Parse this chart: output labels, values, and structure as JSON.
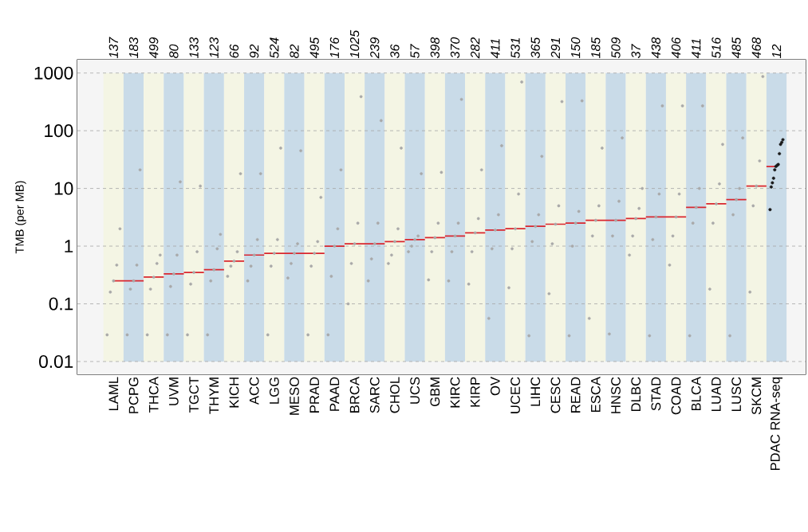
{
  "chart_data": {
    "type": "scatter",
    "ylabel": "TMB (per MB)",
    "categories": [
      "LAML",
      "PCPG",
      "THCA",
      "UVM",
      "TGCT",
      "THYM",
      "KICH",
      "ACC",
      "LGG",
      "MESO",
      "PRAD",
      "PAAD",
      "BRCA",
      "SARC",
      "CHOL",
      "UCS",
      "GBM",
      "KIRC",
      "KIRP",
      "OV",
      "UCEC",
      "LIHC",
      "CESC",
      "READ",
      "ESCA",
      "HNSC",
      "DLBC",
      "STAD",
      "COAD",
      "BLCA",
      "LUAD",
      "LUSC",
      "SKCM",
      "PDAC RNA-seq"
    ],
    "log": "y",
    "ylim": [
      0.006,
      1700
    ],
    "yticks": [
      0.01,
      0.1,
      1,
      10,
      100,
      1000
    ],
    "grid": "y",
    "series": [
      {
        "marker": "circle",
        "color": "#a9a9a9",
        "x": [
          "LAML",
          "LAML",
          "LAML",
          "LAML",
          "LAML",
          "PCPG",
          "PCPG",
          "PCPG",
          "PCPG",
          "PCPG",
          "THCA",
          "THCA",
          "THCA",
          "THCA",
          "THCA",
          "UVM",
          "UVM",
          "UVM",
          "UVM",
          "UVM",
          "TGCT",
          "TGCT",
          "TGCT",
          "TGCT",
          "TGCT",
          "THYM",
          "THYM",
          "THYM",
          "THYM",
          "THYM",
          "KICH",
          "KICH",
          "KICH",
          "KICH",
          "KICH",
          "ACC",
          "ACC",
          "ACC",
          "ACC",
          "ACC",
          "LGG",
          "LGG",
          "LGG",
          "LGG",
          "LGG",
          "MESO",
          "MESO",
          "MESO",
          "MESO",
          "MESO",
          "PRAD",
          "PRAD",
          "PRAD",
          "PRAD",
          "PRAD",
          "PAAD",
          "PAAD",
          "PAAD",
          "PAAD",
          "PAAD",
          "BRCA",
          "BRCA",
          "BRCA",
          "BRCA",
          "BRCA",
          "SARC",
          "SARC",
          "SARC",
          "SARC",
          "SARC",
          "CHOL",
          "CHOL",
          "CHOL",
          "CHOL",
          "CHOL",
          "UCS",
          "UCS",
          "UCS",
          "UCS",
          "UCS",
          "GBM",
          "GBM",
          "GBM",
          "GBM",
          "GBM",
          "KIRC",
          "KIRC",
          "KIRC",
          "KIRC",
          "KIRC",
          "KIRP",
          "KIRP",
          "KIRP",
          "KIRP",
          "KIRP",
          "OV",
          "OV",
          "OV",
          "OV",
          "OV",
          "UCEC",
          "UCEC",
          "UCEC",
          "UCEC",
          "UCEC",
          "LIHC",
          "LIHC",
          "LIHC",
          "LIHC",
          "LIHC",
          "CESC",
          "CESC",
          "CESC",
          "CESC",
          "CESC",
          "READ",
          "READ",
          "READ",
          "READ",
          "READ",
          "ESCA",
          "ESCA",
          "ESCA",
          "ESCA",
          "ESCA",
          "HNSC",
          "HNSC",
          "HNSC",
          "HNSC",
          "HNSC",
          "DLBC",
          "DLBC",
          "DLBC",
          "DLBC",
          "DLBC",
          "STAD",
          "STAD",
          "STAD",
          "STAD",
          "STAD",
          "COAD",
          "COAD",
          "COAD",
          "COAD",
          "COAD",
          "BLCA",
          "BLCA",
          "BLCA",
          "BLCA",
          "BLCA",
          "LUAD",
          "LUAD",
          "LUAD",
          "LUAD",
          "LUAD",
          "LUSC",
          "LUSC",
          "LUSC",
          "LUSC",
          "LUSC",
          "SKCM",
          "SKCM",
          "SKCM",
          "SKCM",
          "SKCM"
        ],
        "values": [
          0.029,
          0.16,
          0.25,
          0.47,
          2,
          0.029,
          0.18,
          0.25,
          0.47,
          21,
          0.029,
          0.18,
          0.29,
          0.5,
          0.7,
          0.029,
          0.2,
          0.33,
          0.7,
          13,
          0.029,
          0.22,
          0.35,
          0.8,
          11,
          0.029,
          0.25,
          0.39,
          0.9,
          1.6,
          0.3,
          0.45,
          0.55,
          0.8,
          18,
          0.25,
          0.45,
          0.7,
          1.3,
          18,
          0.029,
          0.45,
          0.75,
          1.3,
          50,
          0.28,
          0.5,
          0.75,
          1.1,
          45,
          0.029,
          0.45,
          0.75,
          1.2,
          7,
          0.029,
          0.3,
          1,
          2,
          21,
          0.1,
          0.5,
          1.1,
          2.5,
          390,
          0.25,
          0.6,
          1.1,
          2.5,
          150,
          0.5,
          0.7,
          1.2,
          2,
          50,
          0.8,
          1,
          1.3,
          1.5,
          18,
          0.26,
          0.8,
          1.4,
          2.5,
          19,
          0.25,
          0.8,
          1.5,
          2.5,
          350,
          0.22,
          0.8,
          1.7,
          3,
          21,
          0.056,
          0.9,
          1.9,
          3.5,
          55,
          0.19,
          0.9,
          2,
          8,
          700,
          0.028,
          1.2,
          2.2,
          3.5,
          36,
          0.15,
          1.1,
          2.4,
          5,
          320,
          0.028,
          1,
          2.5,
          4,
          330,
          0.056,
          1.5,
          2.8,
          5,
          50,
          0.03,
          1.5,
          2.8,
          6,
          75,
          0.7,
          1.5,
          3,
          4.5,
          10,
          0.028,
          1.3,
          3.2,
          8,
          270,
          0.47,
          1.5,
          3.2,
          8,
          270,
          0.028,
          2.5,
          4.7,
          10,
          270,
          0.18,
          2.5,
          5.4,
          12,
          58,
          0.028,
          3.5,
          6.4,
          10,
          75,
          0.16,
          5,
          11,
          30,
          870
        ]
      },
      {
        "marker": "circle",
        "color": "#1a1a1a",
        "x": [
          "PDAC RNA-seq",
          "PDAC RNA-seq",
          "PDAC RNA-seq",
          "PDAC RNA-seq",
          "PDAC RNA-seq",
          "PDAC RNA-seq",
          "PDAC RNA-seq",
          "PDAC RNA-seq",
          "PDAC RNA-seq",
          "PDAC RNA-seq",
          "PDAC RNA-seq",
          "PDAC RNA-seq"
        ],
        "values": [
          4.3,
          10.6,
          12.5,
          15,
          21,
          24,
          25,
          26,
          40,
          58,
          63,
          70
        ]
      },
      {
        "type": "step",
        "color": "#d9262e",
        "values": [
          0.25,
          0.25,
          0.29,
          0.33,
          0.35,
          0.39,
          0.55,
          0.7,
          0.75,
          0.75,
          0.75,
          1,
          1.1,
          1.1,
          1.2,
          1.3,
          1.4,
          1.5,
          1.7,
          1.9,
          2,
          2.2,
          2.4,
          2.5,
          2.8,
          2.8,
          3,
          3.2,
          3.2,
          4.7,
          5.4,
          6.4,
          11,
          24
        ]
      }
    ],
    "bands": [
      {
        "axis": "x",
        "from": "LAML",
        "to": "LAML",
        "color": "#f4f5e4"
      },
      {
        "axis": "x",
        "from": "PCPG",
        "to": "PCPG",
        "color": "#c9dbe8"
      },
      {
        "axis": "x",
        "from": "THCA",
        "to": "THCA",
        "color": "#f4f5e4"
      },
      {
        "axis": "x",
        "from": "UVM",
        "to": "UVM",
        "color": "#c9dbe8"
      },
      {
        "axis": "x",
        "from": "TGCT",
        "to": "TGCT",
        "color": "#f4f5e4"
      },
      {
        "axis": "x",
        "from": "THYM",
        "to": "THYM",
        "color": "#c9dbe8"
      },
      {
        "axis": "x",
        "from": "KICH",
        "to": "KICH",
        "color": "#f4f5e4"
      },
      {
        "axis": "x",
        "from": "ACC",
        "to": "ACC",
        "color": "#c9dbe8"
      },
      {
        "axis": "x",
        "from": "LGG",
        "to": "LGG",
        "color": "#f4f5e4"
      },
      {
        "axis": "x",
        "from": "MESO",
        "to": "MESO",
        "color": "#c9dbe8"
      },
      {
        "axis": "x",
        "from": "PRAD",
        "to": "PRAD",
        "color": "#f4f5e4"
      },
      {
        "axis": "x",
        "from": "PAAD",
        "to": "PAAD",
        "color": "#c9dbe8"
      },
      {
        "axis": "x",
        "from": "BRCA",
        "to": "BRCA",
        "color": "#f4f5e4"
      },
      {
        "axis": "x",
        "from": "SARC",
        "to": "SARC",
        "color": "#c9dbe8"
      },
      {
        "axis": "x",
        "from": "CHOL",
        "to": "CHOL",
        "color": "#f4f5e4"
      },
      {
        "axis": "x",
        "from": "UCS",
        "to": "UCS",
        "color": "#c9dbe8"
      },
      {
        "axis": "x",
        "from": "GBM",
        "to": "GBM",
        "color": "#f4f5e4"
      },
      {
        "axis": "x",
        "from": "KIRC",
        "to": "KIRC",
        "color": "#c9dbe8"
      },
      {
        "axis": "x",
        "from": "KIRP",
        "to": "KIRP",
        "color": "#f4f5e4"
      },
      {
        "axis": "x",
        "from": "OV",
        "to": "OV",
        "color": "#c9dbe8"
      },
      {
        "axis": "x",
        "from": "UCEC",
        "to": "UCEC",
        "color": "#f4f5e4"
      },
      {
        "axis": "x",
        "from": "LIHC",
        "to": "LIHC",
        "color": "#c9dbe8"
      },
      {
        "axis": "x",
        "from": "CESC",
        "to": "CESC",
        "color": "#f4f5e4"
      },
      {
        "axis": "x",
        "from": "READ",
        "to": "READ",
        "color": "#c9dbe8"
      },
      {
        "axis": "x",
        "from": "ESCA",
        "to": "ESCA",
        "color": "#f4f5e4"
      },
      {
        "axis": "x",
        "from": "HNSC",
        "to": "HNSC",
        "color": "#c9dbe8"
      },
      {
        "axis": "x",
        "from": "DLBC",
        "to": "DLBC",
        "color": "#f4f5e4"
      },
      {
        "axis": "x",
        "from": "STAD",
        "to": "STAD",
        "color": "#c9dbe8"
      },
      {
        "axis": "x",
        "from": "COAD",
        "to": "COAD",
        "color": "#f4f5e4"
      },
      {
        "axis": "x",
        "from": "BLCA",
        "to": "BLCA",
        "color": "#c9dbe8"
      },
      {
        "axis": "x",
        "from": "LUAD",
        "to": "LUAD",
        "color": "#f4f5e4"
      },
      {
        "axis": "x",
        "from": "LUSC",
        "to": "LUSC",
        "color": "#c9dbe8"
      },
      {
        "axis": "x",
        "from": "SKCM",
        "to": "SKCM",
        "color": "#f4f5e4"
      },
      {
        "axis": "x",
        "from": "PDAC RNA-seq",
        "to": "PDAC RNA-seq",
        "color": "#c9dbe8"
      }
    ],
    "annotations": [
      "137",
      "183",
      "499",
      "80",
      "133",
      "123",
      "66",
      "92",
      "524",
      "82",
      "495",
      "176",
      "1025",
      "239",
      "36",
      "57",
      "398",
      "370",
      "282",
      "411",
      "531",
      "365",
      "291",
      "150",
      "185",
      "509",
      "37",
      "438",
      "406",
      "411",
      "516",
      "485",
      "468",
      "12"
    ]
  }
}
